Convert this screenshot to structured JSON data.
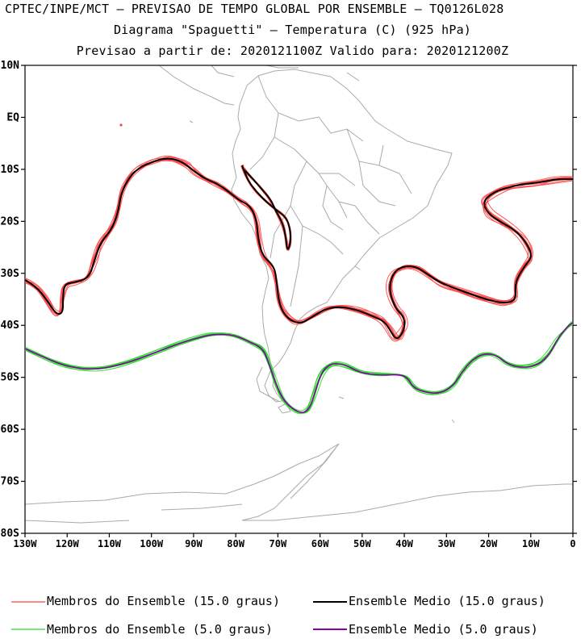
{
  "header": {
    "line1": "CPTEC/INPE/MCT – PREVISAO DE TEMPO GLOBAL POR ENSEMBLE – TQ0126L028",
    "line2": "Diagrama \"Spaguetti\" – Temperatura (C) (925 hPa)",
    "line3": "Previsao a partir de: 2020121100Z  Valido para: 2020121200Z"
  },
  "axes": {
    "lat_labels": [
      "10N",
      "EQ",
      "10S",
      "20S",
      "30S",
      "40S",
      "50S",
      "60S",
      "70S",
      "80S"
    ],
    "lon_labels": [
      "130W",
      "120W",
      "110W",
      "100W",
      "90W",
      "80W",
      "70W",
      "60W",
      "50W",
      "40W",
      "30W",
      "20W",
      "10W",
      "0"
    ]
  },
  "legend": {
    "members_15": "Membros do Ensemble (15.0 graus)",
    "mean_15": "Ensemble Medio (15.0 graus)",
    "members_5": "Membros do Ensemble (5.0 graus)",
    "mean_5": "Ensemble Medio (5.0 graus)"
  },
  "colors": {
    "members_15": "#ff4444",
    "mean_15": "#000000",
    "members_5": "#22dd22",
    "mean_5": "#8800aa",
    "coast": "#aaaaaa"
  }
}
